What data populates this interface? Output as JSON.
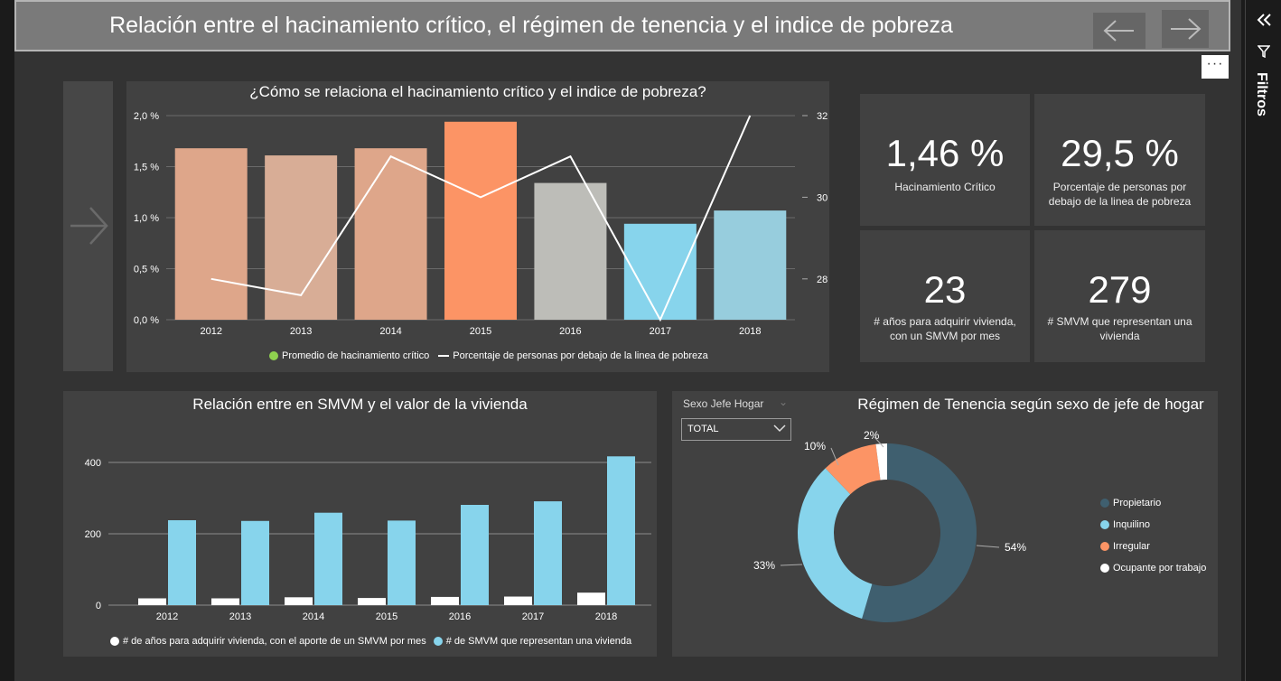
{
  "header": {
    "title": "Relación entre el hacinamiento crítico, el régimen de tenencia y el indice de pobreza",
    "back_icon": "arrow-left-icon",
    "forward_icon": "arrow-right-icon"
  },
  "more_options": "···",
  "filters_pane": {
    "label": "Filtros",
    "collapse_icon": "double-chevron-left-icon",
    "filter_icon": "funnel-icon"
  },
  "kpis": [
    {
      "value": "1,46 %",
      "label": "Hacinamiento Crítico"
    },
    {
      "value": "29,5 %",
      "label": "Porcentaje de personas por debajo de la linea de pobreza"
    },
    {
      "value": "23",
      "label": "# años para adquirir vivienda, con un SMVM por mes"
    },
    {
      "value": "279",
      "label": "# SMVM que representan una vivienda"
    }
  ],
  "colors": {
    "background": "#333333",
    "panel": "#414141",
    "bar_2012": "#dea68a",
    "bar_2013": "#d8ad96",
    "bar_2014": "#dea68a",
    "bar_2015": "#fc9465",
    "bar_2016": "#bdbdb8",
    "bar_2017": "#87d4ec",
    "bar_2018": "#97cddd",
    "line": "#ffffff",
    "legend_green": "#8fd14f",
    "propietario": "#3f5f6f",
    "inquilino": "#87d4ec",
    "irregular": "#fc9465",
    "ocupante": "#ffffff"
  },
  "chart_data": [
    {
      "type": "bar",
      "title": "¿Cómo se relaciona el hacinamiento crítico y el indice de pobreza?",
      "categories": [
        "2012",
        "2013",
        "2014",
        "2015",
        "2016",
        "2017",
        "2018"
      ],
      "series": [
        {
          "name": "Promedio de hacinamiento crítico",
          "type": "bar",
          "axis": "left",
          "values": [
            1.68,
            1.61,
            1.68,
            1.94,
            1.34,
            0.94,
            1.07
          ]
        },
        {
          "name": "Porcentaje de personas por debajo de la linea de pobreza",
          "type": "line",
          "axis": "right",
          "values": [
            28.0,
            27.6,
            31.0,
            30.0,
            31.0,
            27.0,
            32.0
          ]
        }
      ],
      "left_axis": {
        "ticks": [
          "0,0 %",
          "0,5 %",
          "1,0 %",
          "1,5 %",
          "2,0 %"
        ],
        "ylim": [
          0,
          2.0
        ]
      },
      "right_axis": {
        "ticks": [
          "28 %",
          "30 %",
          "32 %"
        ],
        "ylim": [
          27,
          32
        ]
      },
      "grid": true,
      "legend_position": "bottom"
    },
    {
      "type": "bar",
      "title": "Relación entre en SMVM y el valor de la vivienda",
      "categories": [
        "2012",
        "2013",
        "2014",
        "2015",
        "2016",
        "2017",
        "2018"
      ],
      "series": [
        {
          "name": "# de años para adquirir vivienda, con el aporte de un SMVM por mes",
          "values": [
            19,
            19,
            22,
            20,
            23,
            24,
            35
          ]
        },
        {
          "name": "# de SMVM que representan una vivienda",
          "values": [
            238,
            236,
            259,
            237,
            281,
            291,
            417
          ]
        }
      ],
      "y_ticks": [
        "0",
        "200",
        "400"
      ],
      "ylim": [
        0,
        430
      ],
      "grid": true,
      "legend_position": "bottom"
    },
    {
      "type": "pie",
      "title": "Régimen de Tenencia según sexo de jefe de hogar",
      "donut": true,
      "slices": [
        {
          "label": "Propietario",
          "value": 54,
          "text": "54%"
        },
        {
          "label": "Inquilino",
          "value": 33,
          "text": "33%"
        },
        {
          "label": "Irregular",
          "value": 10,
          "text": "10%"
        },
        {
          "label": "Ocupante por trabajo",
          "value": 2,
          "text": "2%"
        }
      ],
      "legend_position": "right"
    }
  ],
  "slicer": {
    "label": "Sexo Jefe Hogar",
    "selected": "TOTAL"
  }
}
